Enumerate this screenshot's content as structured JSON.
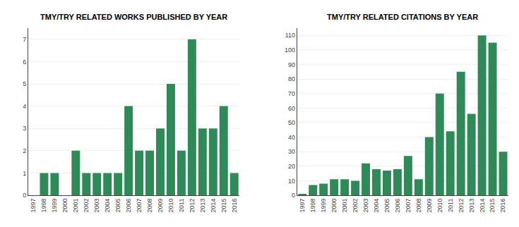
{
  "chart_data": [
    {
      "type": "bar",
      "title": "TMY/TRY RELATED WORKS PUBLISHED BY YEAR",
      "categories": [
        "1997",
        "1998",
        "1999",
        "2000",
        "2001",
        "2002",
        "2003",
        "2004",
        "2005",
        "2006",
        "2007",
        "2008",
        "2009",
        "2010",
        "2011",
        "2012",
        "2013",
        "2014",
        "2015",
        "2016"
      ],
      "values": [
        0,
        1,
        1,
        0,
        2,
        1,
        1,
        1,
        1,
        4,
        2,
        2,
        3,
        5,
        2,
        7,
        3,
        3,
        4,
        1
      ],
      "color": "#2e8b57",
      "ylim": [
        0,
        7.5
      ],
      "yticks": [
        0,
        1,
        2,
        3,
        4,
        5,
        6,
        7
      ],
      "grid": true
    },
    {
      "type": "bar",
      "title": "TMY/TRY RELATED CITATIONS BY YEAR",
      "categories": [
        "1997",
        "1998",
        "1999",
        "2000",
        "2001",
        "2002",
        "2003",
        "2004",
        "2005",
        "2006",
        "2007",
        "2008",
        "2009",
        "2010",
        "2011",
        "2012",
        "2013",
        "2014",
        "2015",
        "2016"
      ],
      "values": [
        1,
        7,
        8,
        11,
        11,
        10,
        22,
        18,
        17,
        18,
        27,
        11,
        40,
        70,
        44,
        85,
        56,
        110,
        105,
        30
      ],
      "color": "#2e8b57",
      "ylim": [
        0,
        115
      ],
      "yticks": [
        0,
        10,
        20,
        30,
        40,
        50,
        60,
        70,
        80,
        90,
        100,
        110
      ],
      "grid": true
    }
  ]
}
